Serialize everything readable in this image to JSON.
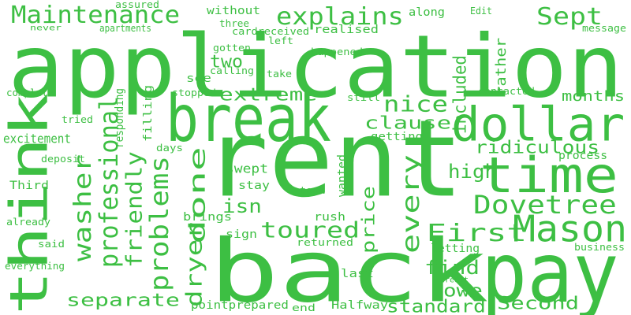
{
  "color": "#3dbf43",
  "words": [
    {
      "text": "application"
    },
    {
      "text": "rent"
    },
    {
      "text": "back"
    },
    {
      "text": "pay"
    },
    {
      "text": "break"
    },
    {
      "text": "think"
    },
    {
      "text": "dollar"
    },
    {
      "text": "time"
    },
    {
      "text": "Mason"
    },
    {
      "text": "Maintenance"
    },
    {
      "text": "explains"
    },
    {
      "text": "Sept"
    },
    {
      "text": "Dovetree"
    },
    {
      "text": "professional"
    },
    {
      "text": "done"
    },
    {
      "text": "dryer"
    },
    {
      "text": "problems"
    },
    {
      "text": "friendly"
    },
    {
      "text": "washer"
    },
    {
      "text": "every"
    },
    {
      "text": "First"
    },
    {
      "text": "toured"
    },
    {
      "text": "extreme"
    },
    {
      "text": "nice"
    },
    {
      "text": "clause"
    },
    {
      "text": "ridiculous"
    },
    {
      "text": "separate"
    },
    {
      "text": "find"
    },
    {
      "text": "Second"
    },
    {
      "text": "included"
    },
    {
      "text": "two"
    },
    {
      "text": "isn"
    },
    {
      "text": "high"
    },
    {
      "text": "price"
    },
    {
      "text": "owe"
    },
    {
      "text": "standard"
    },
    {
      "text": "months"
    },
    {
      "text": "rather"
    },
    {
      "text": "realised"
    },
    {
      "text": "assured"
    },
    {
      "text": "without"
    },
    {
      "text": "along"
    },
    {
      "text": "Edit"
    },
    {
      "text": "never"
    },
    {
      "text": "apartments"
    },
    {
      "text": "three"
    },
    {
      "text": "cardreceived"
    },
    {
      "text": "left"
    },
    {
      "text": "message"
    },
    {
      "text": "see"
    },
    {
      "text": "gotten"
    },
    {
      "text": "happened"
    },
    {
      "text": "calling"
    },
    {
      "text": "take"
    },
    {
      "text": "complete"
    },
    {
      "text": "stopped"
    },
    {
      "text": "still"
    },
    {
      "text": "contacted"
    },
    {
      "text": "tried"
    },
    {
      "text": "responding"
    },
    {
      "text": "filling"
    },
    {
      "text": "getting"
    },
    {
      "text": "excitement"
    },
    {
      "text": "days"
    },
    {
      "text": "process"
    },
    {
      "text": "deposit"
    },
    {
      "text": "swept"
    },
    {
      "text": "wanted"
    },
    {
      "text": "stay"
    },
    {
      "text": "took"
    },
    {
      "text": "Third"
    },
    {
      "text": "already"
    },
    {
      "text": "brings"
    },
    {
      "text": "rush"
    },
    {
      "text": "sign"
    },
    {
      "text": "said"
    },
    {
      "text": "returned"
    },
    {
      "text": "letting"
    },
    {
      "text": "business"
    },
    {
      "text": "everything"
    },
    {
      "text": "last"
    },
    {
      "text": "credit"
    },
    {
      "text": "pointprepared"
    },
    {
      "text": "end"
    },
    {
      "text": "Halfway"
    }
  ]
}
